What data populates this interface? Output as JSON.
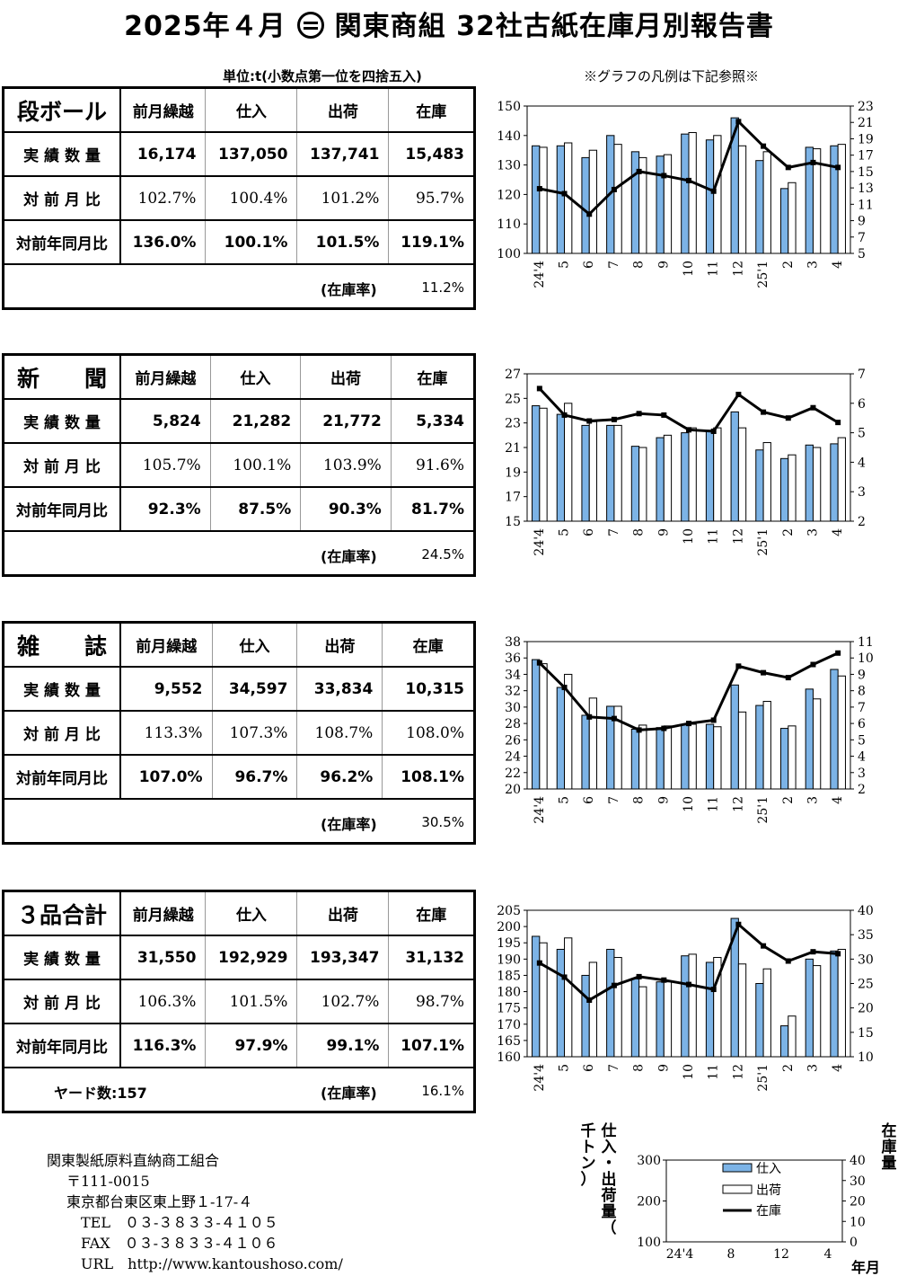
{
  "title": {
    "pre": "2025年４月",
    "post": "関東商組  32社古紙在庫月別報告書"
  },
  "unit_note": "単位:t(小数点第一位を四捨五入)",
  "legend_note": "※グラフの凡例は下記参照※",
  "columns": [
    "前月繰越",
    "仕入",
    "出荷",
    "在庫"
  ],
  "row_labels": [
    "実 績 数 量",
    "対 前 月 比",
    "対前年同月比"
  ],
  "ratio_label": "(在庫率)",
  "blocks": [
    {
      "name": "段ボール",
      "actual": [
        "16,174",
        "137,050",
        "137,741",
        "15,483"
      ],
      "mom": [
        "102.7%",
        "100.4%",
        "101.2%",
        "95.7%"
      ],
      "yoy": [
        "136.0%",
        "100.1%",
        "101.5%",
        "119.1%"
      ],
      "ratio": "11.2%"
    },
    {
      "name": "新　　聞",
      "actual": [
        "5,824",
        "21,282",
        "21,772",
        "5,334"
      ],
      "mom": [
        "105.7%",
        "100.1%",
        "103.9%",
        "91.6%"
      ],
      "yoy": [
        "92.3%",
        "87.5%",
        "90.3%",
        "81.7%"
      ],
      "ratio": "24.5%"
    },
    {
      "name": "雑　　誌",
      "actual": [
        "9,552",
        "34,597",
        "33,834",
        "10,315"
      ],
      "mom": [
        "113.3%",
        "107.3%",
        "108.7%",
        "108.0%"
      ],
      "yoy": [
        "107.0%",
        "96.7%",
        "96.2%",
        "108.1%"
      ],
      "ratio": "30.5%"
    },
    {
      "name": "３品合計",
      "actual": [
        "31,550",
        "192,929",
        "193,347",
        "31,132"
      ],
      "mom": [
        "106.3%",
        "101.5%",
        "102.7%",
        "98.7%"
      ],
      "yoy": [
        "116.3%",
        "97.9%",
        "99.1%",
        "107.1%"
      ],
      "ratio": "16.1%",
      "yard": "ヤード数:157"
    }
  ],
  "footer": {
    "org": "関東製紙原料直納商工組合",
    "zip": "〒111-0015",
    "address": "東京都台東区東上野１-17-４",
    "tel": "TEL　０３-３８３３-４１０５",
    "fax": "FAX　０３-３８３３-４１０６",
    "url": "URL　http://www.kantoushoso.com/"
  },
  "colors": {
    "purchase_bar": "#7cb3e6",
    "shipment_bar": "#ffffff",
    "inventory_line": "#000000"
  },
  "chart_data": [
    {
      "type": "bar",
      "name": "段ボール",
      "categories": [
        "24'4",
        "5",
        "6",
        "7",
        "8",
        "9",
        "10",
        "11",
        "12",
        "25'1",
        "2",
        "3",
        "4"
      ],
      "ylim": [
        100,
        150
      ],
      "yticks": [
        100,
        110,
        120,
        130,
        140,
        150
      ],
      "y2lim": [
        5,
        23
      ],
      "y2ticks": [
        5,
        7,
        9,
        11,
        13,
        15,
        17,
        19,
        21,
        23
      ],
      "series": [
        {
          "name": "仕入",
          "values": [
            136.5,
            136.5,
            132.5,
            140,
            134.5,
            133,
            140.5,
            138.5,
            146,
            131.5,
            122,
            136,
            136.5
          ]
        },
        {
          "name": "出荷",
          "values": [
            136,
            137.5,
            135,
            137,
            132.5,
            133.5,
            141,
            140,
            136.5,
            134.5,
            124,
            135.5,
            137
          ]
        },
        {
          "name": "在庫",
          "axis": "right",
          "values": [
            12.9,
            12.3,
            9.8,
            12.8,
            15.0,
            14.5,
            13.9,
            12.6,
            21.1,
            18.1,
            15.5,
            16.1,
            15.5
          ]
        }
      ]
    },
    {
      "type": "bar",
      "name": "新聞",
      "categories": [
        "24'4",
        "5",
        "6",
        "7",
        "8",
        "9",
        "10",
        "11",
        "12",
        "25'1",
        "2",
        "3",
        "4"
      ],
      "ylim": [
        15,
        27
      ],
      "yticks": [
        15,
        17,
        19,
        21,
        23,
        25,
        27
      ],
      "y2lim": [
        2,
        7
      ],
      "y2ticks": [
        2,
        3,
        4,
        5,
        6,
        7
      ],
      "series": [
        {
          "name": "仕入",
          "values": [
            24.4,
            23.7,
            22.8,
            22.8,
            21.1,
            21.8,
            22.2,
            22.4,
            23.9,
            20.8,
            20.1,
            21.2,
            21.3
          ]
        },
        {
          "name": "出荷",
          "values": [
            24.2,
            24.6,
            23.1,
            22.8,
            21.0,
            22.0,
            22.6,
            22.6,
            22.6,
            21.4,
            20.4,
            21.0,
            21.8
          ]
        },
        {
          "name": "在庫",
          "axis": "right",
          "values": [
            6.5,
            5.6,
            5.4,
            5.45,
            5.65,
            5.6,
            5.1,
            5.05,
            6.3,
            5.7,
            5.5,
            5.85,
            5.35
          ]
        }
      ]
    },
    {
      "type": "bar",
      "name": "雑誌",
      "categories": [
        "24'4",
        "5",
        "6",
        "7",
        "8",
        "9",
        "10",
        "11",
        "12",
        "25'1",
        "2",
        "3",
        "4"
      ],
      "ylim": [
        20,
        38
      ],
      "yticks": [
        20,
        22,
        24,
        26,
        28,
        30,
        32,
        34,
        36,
        38
      ],
      "y2lim": [
        2,
        11
      ],
      "y2ticks": [
        2,
        3,
        4,
        5,
        6,
        7,
        8,
        9,
        10,
        11
      ],
      "series": [
        {
          "name": "仕入",
          "values": [
            35.8,
            32.4,
            29.0,
            30.1,
            27.3,
            27.5,
            27.9,
            27.9,
            32.7,
            30.2,
            27.4,
            32.2,
            34.6
          ]
        },
        {
          "name": "出荷",
          "values": [
            35.3,
            34.0,
            31.1,
            30.1,
            27.8,
            27.7,
            27.9,
            27.6,
            29.4,
            30.7,
            27.7,
            31.0,
            33.8
          ]
        },
        {
          "name": "在庫",
          "axis": "right",
          "values": [
            9.7,
            8.2,
            6.4,
            6.3,
            5.6,
            5.7,
            6.0,
            6.2,
            9.5,
            9.1,
            8.8,
            9.6,
            10.3
          ]
        }
      ]
    },
    {
      "type": "bar",
      "name": "３品合計",
      "categories": [
        "24'4",
        "5",
        "6",
        "7",
        "8",
        "9",
        "10",
        "11",
        "12",
        "25'1",
        "2",
        "3",
        "4"
      ],
      "ylim": [
        160,
        205
      ],
      "yticks": [
        160,
        165,
        170,
        175,
        180,
        185,
        190,
        195,
        200,
        205
      ],
      "y2lim": [
        10,
        40
      ],
      "y2ticks": [
        10,
        15,
        20,
        25,
        30,
        35,
        40
      ],
      "series": [
        {
          "name": "仕入",
          "values": [
            197,
            193,
            185,
            193,
            184,
            183,
            191,
            189,
            202.5,
            182.5,
            169.5,
            190,
            192.5
          ]
        },
        {
          "name": "出荷",
          "values": [
            195,
            196.5,
            189,
            190.5,
            181.5,
            183,
            191.5,
            190.5,
            188.5,
            187,
            172.5,
            188,
            193
          ]
        },
        {
          "name": "在庫",
          "axis": "right",
          "values": [
            29.2,
            26.3,
            21.6,
            24.6,
            26.4,
            25.7,
            24.8,
            23.8,
            37.1,
            32.7,
            29.6,
            31.5,
            31.1
          ]
        }
      ]
    }
  ],
  "legend_chart": {
    "left_axis_title": "仕入・出荷量（千トン）",
    "right_axis_title": "在庫量",
    "x_title": "年月",
    "yticks": [
      "100",
      "200",
      "300"
    ],
    "y2ticks": [
      "0",
      "10",
      "20",
      "30",
      "40"
    ],
    "xticks": [
      "24'4",
      "8",
      "12",
      "4"
    ],
    "items": [
      "仕入",
      "出荷",
      "在庫"
    ]
  }
}
